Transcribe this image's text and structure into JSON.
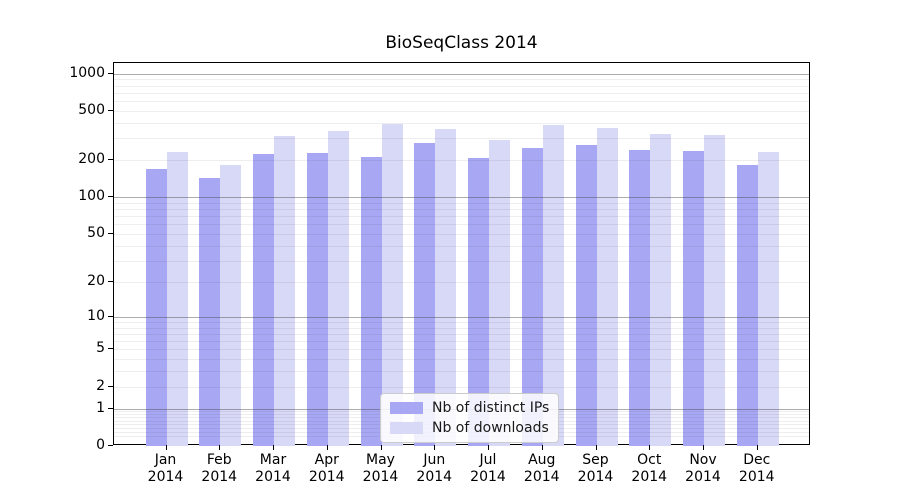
{
  "title": "BioSeqClass 2014",
  "chart_data": {
    "type": "bar",
    "title": "BioSeqClass 2014",
    "categories": [
      "Jan 2014",
      "Feb 2014",
      "Mar 2014",
      "Apr 2014",
      "May 2014",
      "Jun 2014",
      "Jul 2014",
      "Aug 2014",
      "Sep 2014",
      "Oct 2014",
      "Nov 2014",
      "Dec 2014"
    ],
    "series": [
      {
        "name": "Nb of distinct IPs",
        "color": "#a7a7f4",
        "values": [
          171,
          143,
          225,
          229,
          213,
          276,
          207,
          252,
          264,
          242,
          236,
          183
        ]
      },
      {
        "name": "Nb of downloads",
        "color": "#d8d8f7",
        "values": [
          233,
          182,
          315,
          346,
          394,
          358,
          292,
          387,
          366,
          327,
          319,
          231
        ]
      }
    ],
    "xlabel": "",
    "ylabel": "",
    "y_scale": "log1p",
    "y_ticks": [
      0,
      1,
      2,
      5,
      10,
      20,
      50,
      100,
      200,
      500,
      1000
    ],
    "ylim": [
      0,
      1220
    ],
    "grid": "horizontal, major at powers of 10, minor at 2-9 mantissas",
    "legend_position": "lower center (inside plot)"
  },
  "legend": {
    "items": [
      {
        "label": "Nb of distinct IPs",
        "color": "#a7a7f4"
      },
      {
        "label": "Nb of downloads",
        "color": "#d8d8f7"
      }
    ]
  },
  "colors": {
    "background": "#ffffff",
    "bar_distinct_ips": "#a7a7f4",
    "bar_downloads": "#d8d8f7",
    "axis": "#000000",
    "major_gridline": "#aaaaaa",
    "minor_gridline": "#ebebeb",
    "legend_border": "#cccccc"
  }
}
